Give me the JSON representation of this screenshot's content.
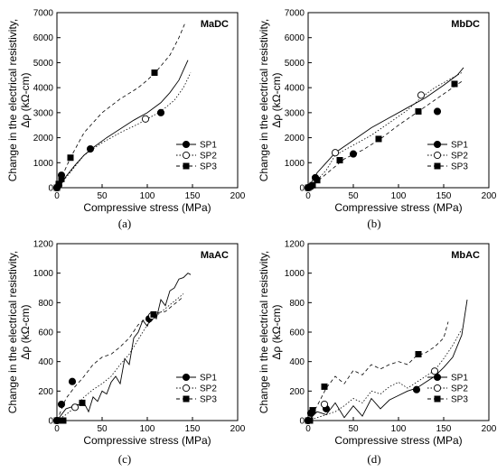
{
  "figure": {
    "panel_labels": [
      "(a)",
      "(b)",
      "(c)",
      "(d)"
    ]
  },
  "chart_data": [
    {
      "type": "line",
      "title": "MaDC",
      "xlabel": "Compressive stress (MPa)",
      "ylabel_line1": "Change in the electrical resistivity,",
      "ylabel_line2": "Δρ (kΩ-cm)",
      "xlim": [
        0,
        200
      ],
      "ylim": [
        0,
        7000
      ],
      "xticks": [
        0,
        50,
        100,
        150,
        200
      ],
      "yticks": [
        0,
        1000,
        2000,
        3000,
        4000,
        5000,
        6000,
        7000
      ],
      "legend_position": "lower-right",
      "series": [
        {
          "name": "SP1",
          "marker": "filled-circle",
          "line": "solid",
          "x": [
            0,
            5,
            10,
            20,
            30,
            40,
            55,
            70,
            85,
            100,
            115,
            125,
            135,
            140,
            145
          ],
          "y": [
            0,
            150,
            450,
            900,
            1300,
            1600,
            2000,
            2350,
            2700,
            3000,
            3400,
            3800,
            4300,
            4700,
            5100
          ],
          "mx": [
            0,
            2,
            5,
            37,
            115
          ],
          "my": [
            0,
            100,
            500,
            1550,
            3000
          ]
        },
        {
          "name": "SP2",
          "marker": "open-circle",
          "line": "dotted",
          "x": [
            0,
            10,
            30,
            50,
            70,
            90,
            100,
            110,
            120,
            130,
            140,
            148
          ],
          "y": [
            0,
            400,
            1300,
            1800,
            2200,
            2550,
            2750,
            2950,
            3200,
            3500,
            4000,
            4600
          ],
          "mx": [
            0,
            98
          ],
          "my": [
            0,
            2750
          ]
        },
        {
          "name": "SP3",
          "marker": "filled-square",
          "line": "dashed",
          "x": [
            0,
            5,
            15,
            30,
            50,
            70,
            90,
            100,
            110,
            125,
            135,
            142
          ],
          "y": [
            0,
            400,
            1200,
            2200,
            3000,
            3550,
            4000,
            4300,
            4650,
            5300,
            6000,
            6600
          ],
          "mx": [
            0,
            2,
            5,
            15,
            108
          ],
          "my": [
            0,
            150,
            350,
            1200,
            4600
          ]
        }
      ]
    },
    {
      "type": "line",
      "title": "MbDC",
      "xlabel": "Compressive stress (MPa)",
      "ylabel_line1": "Change in the electrical resistivity,",
      "ylabel_line2": "Δρ (kΩ-cm)",
      "xlim": [
        0,
        200
      ],
      "ylim": [
        0,
        7000
      ],
      "xticks": [
        0,
        50,
        100,
        150,
        200
      ],
      "yticks": [
        0,
        1000,
        2000,
        3000,
        4000,
        5000,
        6000,
        7000
      ],
      "legend_position": "lower-right",
      "series": [
        {
          "name": "SP1",
          "marker": "filled-circle",
          "line": "solid",
          "x": [
            0,
            5,
            10,
            20,
            30,
            50,
            70,
            90,
            110,
            130,
            150,
            165,
            172
          ],
          "y": [
            0,
            300,
            600,
            1000,
            1400,
            1900,
            2400,
            2800,
            3200,
            3600,
            4100,
            4500,
            4800
          ],
          "mx": [
            0,
            3,
            8,
            50,
            143
          ],
          "my": [
            0,
            50,
            400,
            1350,
            3050
          ]
        },
        {
          "name": "SP2",
          "marker": "open-circle",
          "line": "dotted",
          "x": [
            0,
            10,
            20,
            30,
            50,
            70,
            90,
            110,
            125,
            140,
            155,
            170
          ],
          "y": [
            0,
            300,
            700,
            1300,
            1700,
            2100,
            2600,
            3100,
            3600,
            4000,
            4300,
            4600
          ],
          "mx": [
            0,
            30,
            125
          ],
          "my": [
            0,
            1400,
            3700
          ]
        },
        {
          "name": "SP3",
          "marker": "filled-square",
          "line": "dashed",
          "x": [
            0,
            10,
            25,
            40,
            60,
            80,
            100,
            120,
            140,
            160,
            172
          ],
          "y": [
            0,
            250,
            700,
            1150,
            1500,
            1950,
            2500,
            3000,
            3500,
            4000,
            4300
          ],
          "mx": [
            0,
            5,
            10,
            35,
            78,
            122,
            162
          ],
          "my": [
            0,
            100,
            300,
            1100,
            1950,
            3050,
            4150
          ]
        }
      ]
    },
    {
      "type": "line",
      "title": "MaAC",
      "xlabel": "Compressive stress (MPa)",
      "ylabel_line1": "Change in the electrical resistivity,",
      "ylabel_line2": "Δρ (kΩ-cm)",
      "xlim": [
        0,
        200
      ],
      "ylim": [
        0,
        1200
      ],
      "xticks": [
        0,
        50,
        100,
        150,
        200
      ],
      "yticks": [
        0,
        200,
        400,
        600,
        800,
        1000,
        1200
      ],
      "legend_position": "lower-right",
      "series": [
        {
          "name": "SP1",
          "marker": "filled-circle",
          "line": "solid",
          "x": [
            0,
            10,
            20,
            30,
            35,
            40,
            45,
            50,
            55,
            60,
            65,
            70,
            75,
            80,
            85,
            90,
            95,
            100,
            105,
            110,
            115,
            120,
            125,
            130,
            135,
            140,
            145,
            148
          ],
          "y": [
            0,
            80,
            100,
            120,
            60,
            160,
            130,
            200,
            180,
            260,
            300,
            250,
            420,
            380,
            560,
            600,
            680,
            640,
            720,
            690,
            820,
            780,
            880,
            900,
            960,
            970,
            1000,
            990
          ],
          "mx": [
            0,
            5,
            17,
            102
          ],
          "my": [
            0,
            110,
            265,
            690
          ]
        },
        {
          "name": "SP2",
          "marker": "open-circle",
          "line": "dotted",
          "x": [
            0,
            10,
            20,
            30,
            40,
            50,
            60,
            70,
            80,
            90,
            100,
            110,
            120,
            130,
            140
          ],
          "y": [
            0,
            40,
            90,
            160,
            210,
            250,
            300,
            380,
            450,
            550,
            650,
            710,
            760,
            810,
            860
          ],
          "mx": [
            0,
            20,
            105
          ],
          "my": [
            0,
            90,
            710
          ]
        },
        {
          "name": "SP3",
          "marker": "filled-square",
          "line": "dashed",
          "x": [
            0,
            10,
            20,
            30,
            40,
            50,
            60,
            70,
            80,
            90,
            100,
            110,
            120,
            130,
            140
          ],
          "y": [
            0,
            150,
            230,
            300,
            380,
            430,
            450,
            500,
            560,
            650,
            700,
            730,
            740,
            790,
            840
          ],
          "mx": [
            0,
            7,
            28,
            107
          ],
          "my": [
            0,
            0,
            120,
            720
          ]
        }
      ]
    },
    {
      "type": "line",
      "title": "MbAC",
      "xlabel": "Compressive stress (MPa)",
      "ylabel_line1": "Change in the electrical resistivity,",
      "ylabel_line2": "Δρ (kΩ-cm)",
      "xlim": [
        0,
        200
      ],
      "ylim": [
        0,
        1200
      ],
      "xticks": [
        0,
        50,
        100,
        150,
        200
      ],
      "yticks": [
        0,
        200,
        400,
        600,
        800,
        1000,
        1200
      ],
      "legend_position": "lower-right",
      "series": [
        {
          "name": "SP1",
          "marker": "filled-circle",
          "line": "solid",
          "x": [
            0,
            10,
            20,
            30,
            40,
            50,
            60,
            70,
            80,
            90,
            100,
            110,
            120,
            130,
            140,
            150,
            160,
            170,
            176
          ],
          "y": [
            0,
            60,
            40,
            120,
            20,
            100,
            30,
            150,
            80,
            140,
            170,
            200,
            220,
            260,
            300,
            360,
            430,
            580,
            820
          ],
          "mx": [
            0,
            3,
            20,
            120
          ],
          "my": [
            0,
            50,
            80,
            210
          ]
        },
        {
          "name": "SP2",
          "marker": "open-circle",
          "line": "dotted",
          "x": [
            0,
            10,
            20,
            30,
            40,
            50,
            60,
            70,
            80,
            90,
            100,
            110,
            120,
            130,
            140,
            150,
            160,
            170
          ],
          "y": [
            0,
            20,
            40,
            60,
            100,
            150,
            120,
            200,
            180,
            230,
            260,
            220,
            260,
            300,
            340,
            420,
            510,
            620
          ],
          "mx": [
            0,
            18,
            140
          ],
          "my": [
            0,
            110,
            335
          ]
        },
        {
          "name": "SP3",
          "marker": "filled-square",
          "line": "dashed",
          "x": [
            0,
            10,
            20,
            30,
            40,
            50,
            60,
            70,
            80,
            90,
            100,
            110,
            120,
            130,
            140,
            150,
            155
          ],
          "y": [
            0,
            100,
            220,
            300,
            250,
            340,
            310,
            380,
            350,
            380,
            400,
            380,
            440,
            460,
            500,
            560,
            670
          ],
          "mx": [
            0,
            2,
            5,
            18,
            122
          ],
          "my": [
            0,
            0,
            70,
            230,
            450
          ]
        }
      ]
    }
  ]
}
